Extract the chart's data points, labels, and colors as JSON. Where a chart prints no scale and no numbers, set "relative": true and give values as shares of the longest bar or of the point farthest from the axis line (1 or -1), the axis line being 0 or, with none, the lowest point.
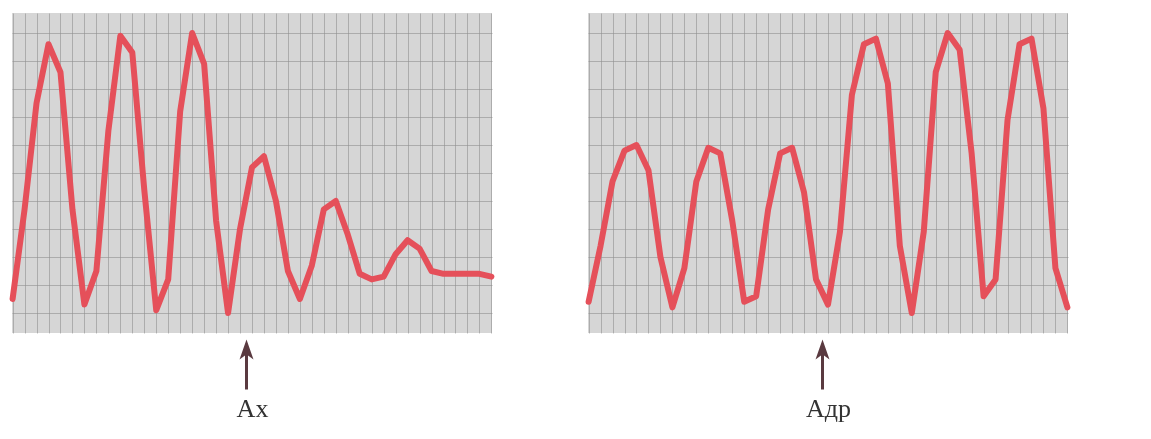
{
  "chart_data": [
    {
      "type": "line",
      "relative": true,
      "grid": true,
      "annotations": [
        "Ax"
      ],
      "categories": [
        null,
        null,
        null,
        null,
        null,
        null,
        null,
        null,
        null,
        null,
        null,
        null,
        null,
        null,
        null,
        null,
        null,
        null,
        null,
        null,
        null,
        null,
        null,
        null,
        null,
        null,
        null,
        null,
        null,
        null,
        null,
        null,
        null,
        null,
        null,
        null,
        null,
        null,
        null,
        null,
        null
      ],
      "series": [
        {
          "color": "#e5505a",
          "values": [
            0.05,
            0.37,
            0.75,
            0.96,
            0.86,
            0.37,
            0.03,
            0.15,
            0.65,
            0.99,
            0.93,
            0.44,
            0.01,
            0.12,
            0.72,
            1.0,
            0.89,
            0.33,
            0,
            0.3,
            0.52,
            0.56,
            0.4,
            0.15,
            0.05,
            0.17,
            0.37,
            0.4,
            0.28,
            0.14,
            0.12,
            0.13,
            0.21,
            0.26,
            0.23,
            0.15,
            0.14,
            0.14,
            0.14,
            0.14,
            0.13
          ]
        }
      ]
    },
    {
      "type": "line",
      "relative": true,
      "grid": true,
      "annotations": [
        "Aдр"
      ],
      "categories": [
        null,
        null,
        null,
        null,
        null,
        null,
        null,
        null,
        null,
        null,
        null,
        null,
        null,
        null,
        null,
        null,
        null,
        null,
        null,
        null,
        null,
        null,
        null,
        null,
        null,
        null,
        null,
        null,
        null,
        null,
        null,
        null,
        null,
        null,
        null,
        null,
        null,
        null,
        null,
        null,
        null
      ],
      "series": [
        {
          "color": "#e5505a",
          "values": [
            0.04,
            0.24,
            0.47,
            0.58,
            0.6,
            0.51,
            0.2,
            0.02,
            0.16,
            0.47,
            0.59,
            0.57,
            0.33,
            0.04,
            0.06,
            0.37,
            0.57,
            0.59,
            0.43,
            0.12,
            0.03,
            0.29,
            0.78,
            0.96,
            0.98,
            0.82,
            0.24,
            0,
            0.29,
            0.86,
            1.0,
            0.94,
            0.57,
            0.06,
            0.12,
            0.69,
            0.96,
            0.98,
            0.73,
            0.16,
            0.02
          ]
        }
      ]
    }
  ]
}
